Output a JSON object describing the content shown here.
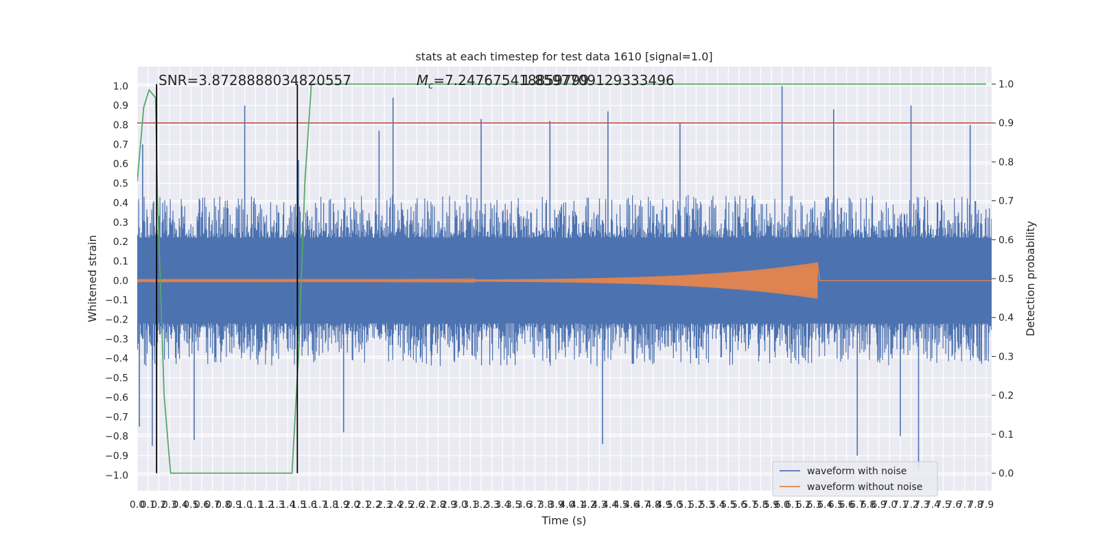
{
  "chart_data": {
    "type": "line",
    "title": "stats at each timestep for test data 1610 [signal=1.0]",
    "xlabel": "Time (s)",
    "ylabel": "Whitened strain",
    "y2label": "Detection probability",
    "xlim": [
      0.0,
      7.95
    ],
    "ylim": [
      -1.08,
      1.1
    ],
    "y2lim": [
      -0.045,
      1.045
    ],
    "grid": true,
    "legend_position": "lower-right",
    "annotations": {
      "snr": "SNR=3.8728888034820557",
      "mc_symbol": "M",
      "mc_subscript": "c",
      "mc_value": "=7.247675418859799",
      "mc_overlap": "1.8597709129333496"
    },
    "x_tick_labels": [
      "0.0",
      "0.1",
      "0.2",
      "0.3",
      "0.4",
      "0.5",
      "0.6",
      "0.7",
      "0.8",
      "0.9",
      "1.0",
      "1.1",
      "1.2",
      "1.3",
      "1.4",
      "1.5",
      "1.6",
      "1.7",
      "1.8",
      "1.9",
      "2.0",
      "2.1",
      "2.2",
      "2.3",
      "2.4",
      "2.5",
      "2.6",
      "2.7",
      "2.8",
      "2.9",
      "3.0",
      "3.1",
      "3.2",
      "3.3",
      "3.4",
      "3.5",
      "3.6",
      "3.7",
      "3.8",
      "3.9",
      "4.0",
      "4.1",
      "4.2",
      "4.3",
      "4.4",
      "4.5",
      "4.6",
      "4.7",
      "4.8",
      "4.9",
      "5.0",
      "5.1",
      "5.2",
      "5.3",
      "5.4",
      "5.5",
      "5.6",
      "5.7",
      "5.8",
      "5.9",
      "6.0",
      "6.1",
      "6.2",
      "6.3",
      "6.4",
      "6.5",
      "6.6",
      "6.7",
      "6.8",
      "6.9",
      "7.0",
      "7.1",
      "7.2",
      "7.3",
      "7.4",
      "7.5",
      "7.6",
      "7.7",
      "7.8",
      "7.9"
    ],
    "y_tick_labels": [
      "−1.0",
      "−0.9",
      "−0.8",
      "−0.7",
      "−0.6",
      "−0.5",
      "−0.4",
      "−0.3",
      "−0.2",
      "−0.1",
      "0.0",
      "0.1",
      "0.2",
      "0.3",
      "0.4",
      "0.5",
      "0.6",
      "0.7",
      "0.8",
      "0.9",
      "1.0"
    ],
    "y2_tick_labels": [
      "0.0",
      "0.1",
      "0.2",
      "0.3",
      "0.4",
      "0.5",
      "0.6",
      "0.7",
      "0.8",
      "0.9",
      "1.0"
    ],
    "threshold": {
      "y2": 0.9,
      "color": "#c44e52"
    },
    "vertical_markers": {
      "x": [
        0.18,
        1.49
      ],
      "color": "#000000"
    },
    "series": [
      {
        "name": "waveform with noise",
        "axis": "left",
        "color": "#4c72b0",
        "noise_envelope": 0.22,
        "spikes": [
          [
            0.02,
            -0.75
          ],
          [
            0.05,
            0.7
          ],
          [
            0.14,
            -0.85
          ],
          [
            0.53,
            -0.82
          ],
          [
            1.0,
            0.9
          ],
          [
            1.5,
            0.62
          ],
          [
            1.92,
            -0.78
          ],
          [
            2.25,
            0.77
          ],
          [
            2.38,
            0.94
          ],
          [
            3.2,
            0.83
          ],
          [
            3.84,
            0.82
          ],
          [
            4.33,
            -0.84
          ],
          [
            4.38,
            0.87
          ],
          [
            5.05,
            0.81
          ],
          [
            6.0,
            1.0
          ],
          [
            6.48,
            0.88
          ],
          [
            6.7,
            -0.9
          ],
          [
            7.1,
            -0.8
          ],
          [
            7.2,
            0.9
          ],
          [
            7.27,
            -0.97
          ],
          [
            7.75,
            0.8
          ]
        ]
      },
      {
        "name": "waveform without noise",
        "axis": "left",
        "color": "#dd8452",
        "chirp_end_x": 6.33,
        "chirp_end_amplitude": 0.09
      },
      {
        "name": "",
        "axis": "right",
        "color": "#55a868",
        "x": [
          0.0,
          0.06,
          0.11,
          0.17,
          0.19,
          0.25,
          0.31,
          0.7,
          1.1,
          1.44,
          1.5,
          1.56,
          1.62,
          2.0,
          7.9
        ],
        "y": [
          0.75,
          0.94,
          0.985,
          0.965,
          0.7,
          0.2,
          0.0,
          0.0,
          0.0,
          0.0,
          0.3,
          0.75,
          1.0,
          1.0,
          1.0
        ]
      }
    ]
  }
}
